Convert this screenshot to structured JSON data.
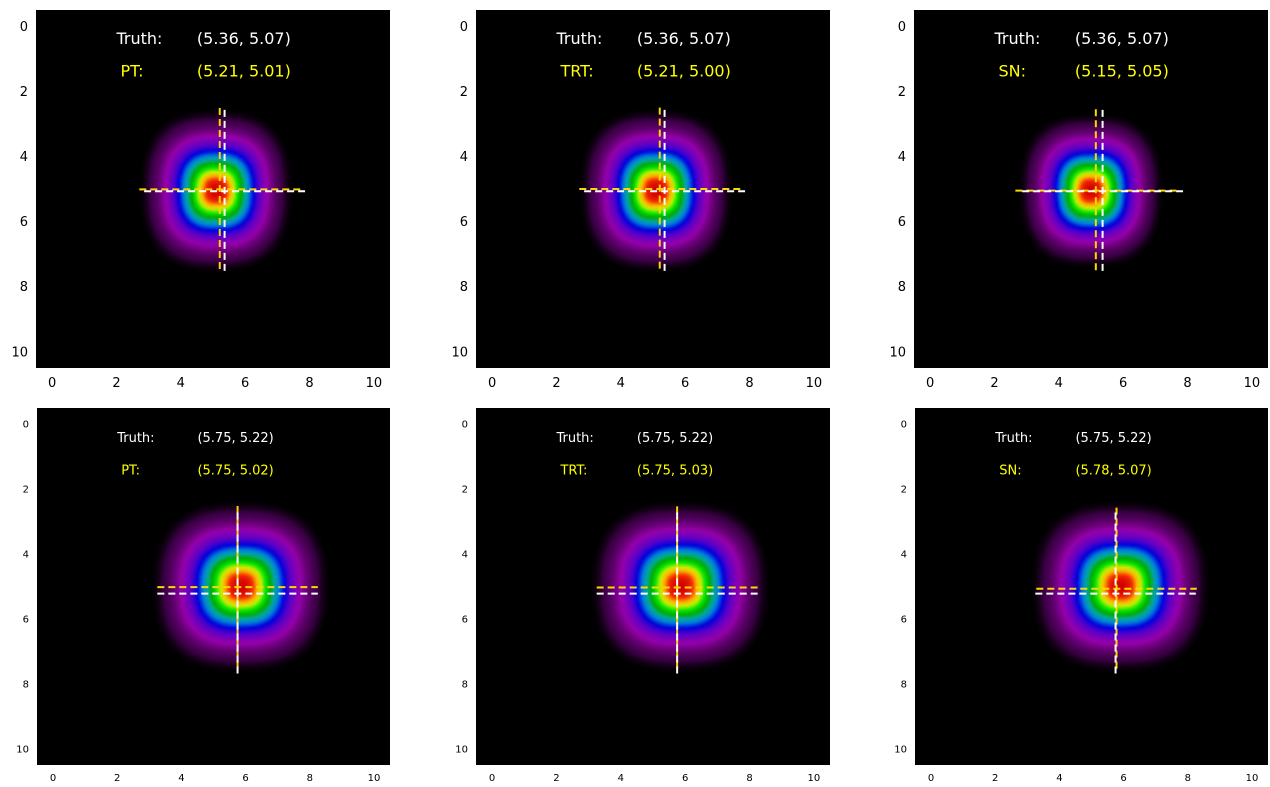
{
  "colors": {
    "truth_text": "#ffffff",
    "estimate_text": "#ffff00",
    "truth_line": "#ffffff",
    "estimate_line": "#ffd700",
    "background": "#000000"
  },
  "axis": {
    "xlim": [
      -0.5,
      10.5
    ],
    "ylim": [
      10.5,
      -0.5
    ],
    "x_ticks": [
      "0",
      "2",
      "4",
      "6",
      "8",
      "10"
    ],
    "y_ticks": [
      "0",
      "2",
      "4",
      "6",
      "8",
      "10"
    ],
    "y_inverted": true,
    "colormap": "nipy_spectral-like (black-purple-blue-cyan-green-yellow-red)"
  },
  "chart_data": [
    {
      "type": "heatmap",
      "method": "PT",
      "truth_label": "Truth:",
      "truth_text": "(5.36, 5.07)",
      "est_label": "PT:",
      "est_text": "(5.21, 5.01)",
      "truth": [
        5.36,
        5.07
      ],
      "estimate": [
        5.21,
        5.01
      ],
      "blob_center": [
        5.1,
        5.05
      ],
      "blob_spread": [
        0.9,
        0.95
      ]
    },
    {
      "type": "heatmap",
      "method": "TRT",
      "truth_label": "Truth:",
      "truth_text": "(5.36, 5.07)",
      "est_label": "TRT:",
      "est_text": "(5.21, 5.00)",
      "truth": [
        5.36,
        5.07
      ],
      "estimate": [
        5.21,
        5.0
      ],
      "blob_center": [
        5.1,
        5.05
      ],
      "blob_spread": [
        0.9,
        0.95
      ]
    },
    {
      "type": "heatmap",
      "method": "SN",
      "truth_label": "Truth:",
      "truth_text": "(5.36, 5.07)",
      "est_label": "SN:",
      "est_text": "(5.15, 5.05)",
      "truth": [
        5.36,
        5.07
      ],
      "estimate": [
        5.15,
        5.05
      ],
      "blob_center": [
        5.0,
        5.05
      ],
      "blob_spread": [
        0.85,
        0.9
      ]
    },
    {
      "type": "heatmap",
      "method": "PT",
      "truth_label": "Truth:",
      "truth_text": "(5.75, 5.22)",
      "est_label": "PT:",
      "est_text": "(5.75, 5.02)",
      "truth": [
        5.75,
        5.22
      ],
      "estimate": [
        5.75,
        5.02
      ],
      "blob_center": [
        5.85,
        5.0
      ],
      "blob_spread": [
        1.05,
        1.0
      ]
    },
    {
      "type": "heatmap",
      "method": "TRT",
      "truth_label": "Truth:",
      "truth_text": "(5.75, 5.22)",
      "est_label": "TRT:",
      "est_text": "(5.75, 5.03)",
      "truth": [
        5.75,
        5.22
      ],
      "estimate": [
        5.75,
        5.03
      ],
      "blob_center": [
        5.85,
        5.0
      ],
      "blob_spread": [
        1.05,
        1.0
      ]
    },
    {
      "type": "heatmap",
      "method": "SN",
      "truth_label": "Truth:",
      "truth_text": "(5.75, 5.22)",
      "est_label": "SN:",
      "est_text": "(5.78, 5.07)",
      "truth": [
        5.75,
        5.22
      ],
      "estimate": [
        5.78,
        5.07
      ],
      "blob_center": [
        5.9,
        5.0
      ],
      "blob_spread": [
        1.05,
        1.0
      ]
    }
  ]
}
